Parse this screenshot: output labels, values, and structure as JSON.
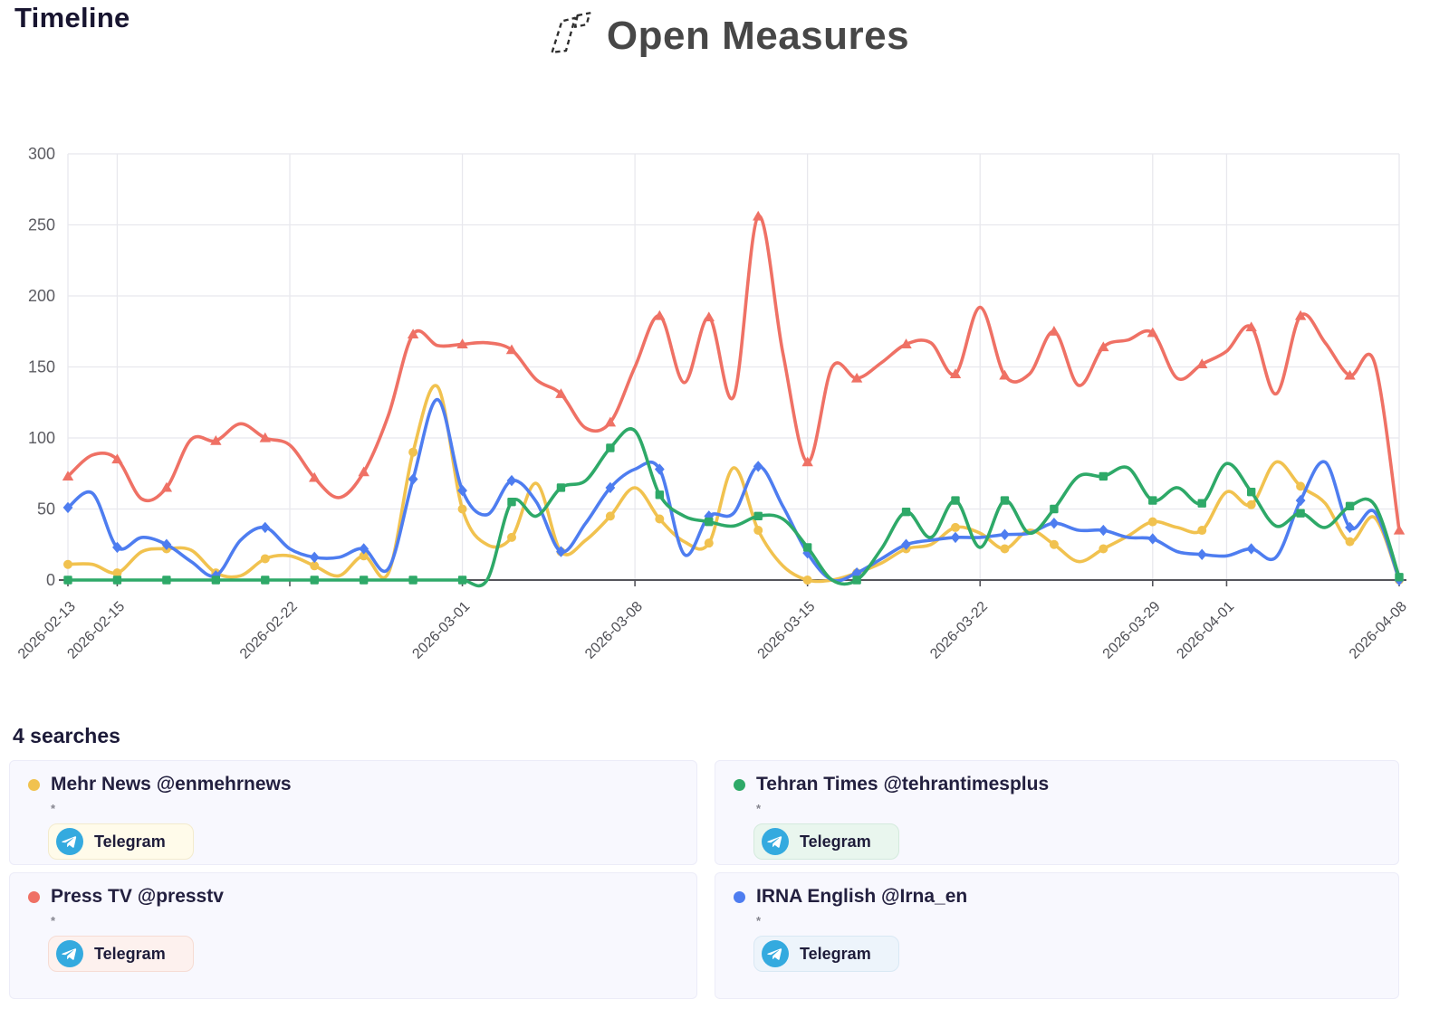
{
  "page": {
    "title": "Timeline",
    "brand": "Open Measures"
  },
  "chart_data": {
    "type": "line",
    "title": "Timeline",
    "xlabel": "",
    "ylabel": "",
    "ylim": [
      0,
      300
    ],
    "y_ticks": [
      0,
      50,
      100,
      150,
      200,
      250,
      300
    ],
    "grid": true,
    "legend_position": "bottom-cards",
    "x_tick_labels": [
      "2026-02-13",
      "2026-02-15",
      "2026-02-22",
      "2026-03-01",
      "2026-03-08",
      "2026-03-15",
      "2026-03-22",
      "2026-03-29",
      "2026-04-01",
      "2026-04-08"
    ],
    "x_tick_day_index": [
      0,
      2,
      9,
      16,
      23,
      30,
      37,
      44,
      47,
      54
    ],
    "x": [
      "2026-02-13",
      "2026-02-14",
      "2026-02-15",
      "2026-02-16",
      "2026-02-17",
      "2026-02-18",
      "2026-02-19",
      "2026-02-20",
      "2026-02-21",
      "2026-02-22",
      "2026-02-23",
      "2026-02-24",
      "2026-02-25",
      "2026-02-26",
      "2026-02-27",
      "2026-02-28",
      "2026-03-01",
      "2026-03-02",
      "2026-03-03",
      "2026-03-04",
      "2026-03-05",
      "2026-03-06",
      "2026-03-07",
      "2026-03-08",
      "2026-03-09",
      "2026-03-10",
      "2026-03-11",
      "2026-03-12",
      "2026-03-13",
      "2026-03-14",
      "2026-03-15",
      "2026-03-16",
      "2026-03-17",
      "2026-03-18",
      "2026-03-19",
      "2026-03-20",
      "2026-03-21",
      "2026-03-22",
      "2026-03-23",
      "2026-03-24",
      "2026-03-25",
      "2026-03-26",
      "2026-03-27",
      "2026-03-28",
      "2026-03-29",
      "2026-03-30",
      "2026-03-31",
      "2026-04-01",
      "2026-04-02",
      "2026-04-03",
      "2026-04-04",
      "2026-04-05",
      "2026-04-06",
      "2026-04-07",
      "2026-04-08"
    ],
    "series": [
      {
        "name": "Mehr News @enmehrnews",
        "platform": "Telegram",
        "color": "#f1c24f",
        "marker": "circle",
        "values": [
          11,
          11,
          5,
          20,
          22,
          21,
          5,
          3,
          15,
          17,
          10,
          3,
          17,
          5,
          90,
          136,
          50,
          25,
          30,
          68,
          20,
          28,
          45,
          65,
          43,
          27,
          26,
          79,
          35,
          10,
          0,
          0,
          5,
          12,
          22,
          25,
          37,
          33,
          22,
          35,
          25,
          13,
          22,
          31,
          41,
          37,
          35,
          62,
          53,
          83,
          66,
          54,
          27,
          44,
          0
        ]
      },
      {
        "name": "Tehran Times @tehrantimesplus",
        "platform": "Telegram",
        "color": "#2ea968",
        "marker": "square",
        "values": [
          0,
          0,
          0,
          0,
          0,
          0,
          0,
          0,
          0,
          0,
          0,
          0,
          0,
          0,
          0,
          0,
          0,
          0,
          55,
          45,
          65,
          70,
          93,
          105,
          60,
          45,
          41,
          38,
          45,
          43,
          23,
          0,
          0,
          22,
          48,
          30,
          56,
          23,
          56,
          33,
          50,
          73,
          73,
          79,
          56,
          65,
          54,
          82,
          62,
          38,
          47,
          37,
          52,
          53,
          2
        ]
      },
      {
        "name": "Press TV @presstv",
        "platform": "Telegram",
        "color": "#ef7165",
        "marker": "triangle",
        "values": [
          73,
          88,
          85,
          57,
          65,
          99,
          98,
          110,
          100,
          95,
          72,
          58,
          76,
          116,
          173,
          165,
          166,
          167,
          162,
          141,
          131,
          107,
          111,
          150,
          186,
          139,
          185,
          129,
          256,
          160,
          83,
          150,
          142,
          153,
          166,
          167,
          145,
          192,
          144,
          145,
          175,
          137,
          164,
          169,
          174,
          142,
          152,
          161,
          178,
          131,
          186,
          167,
          144,
          153,
          35
        ]
      },
      {
        "name": "IRNA English @Irna_en",
        "platform": "Telegram",
        "color": "#4e7df0",
        "marker": "diamond",
        "values": [
          51,
          61,
          23,
          30,
          25,
          13,
          3,
          28,
          37,
          22,
          16,
          16,
          22,
          8,
          71,
          127,
          63,
          46,
          70,
          55,
          20,
          40,
          65,
          78,
          78,
          18,
          45,
          47,
          80,
          52,
          19,
          0,
          5,
          15,
          25,
          28,
          30,
          30,
          32,
          33,
          40,
          35,
          35,
          30,
          29,
          20,
          18,
          17,
          22,
          16,
          56,
          83,
          37,
          48,
          0
        ]
      }
    ]
  },
  "searches": {
    "heading": "4 searches",
    "cards": [
      {
        "title": "Mehr News @enmehrnews",
        "subtitle": "*",
        "chip_label": "Telegram",
        "dot_color": "#f1c24f",
        "chip_bg": "#fffbea",
        "chip_border": "#f3ebcd"
      },
      {
        "title": "Tehran Times @tehrantimesplus",
        "subtitle": "*",
        "chip_label": "Telegram",
        "dot_color": "#2ea968",
        "chip_bg": "#e9f6ee",
        "chip_border": "#d4eadd"
      },
      {
        "title": "Press TV @presstv",
        "subtitle": "*",
        "chip_label": "Telegram",
        "dot_color": "#ef7165",
        "chip_bg": "#fdf1ee",
        "chip_border": "#f6dcd4"
      },
      {
        "title": "IRNA English @Irna_en",
        "subtitle": "*",
        "chip_label": "Telegram",
        "dot_color": "#4e7df0",
        "chip_bg": "#edf4fb",
        "chip_border": "#d9e8f4"
      }
    ]
  }
}
